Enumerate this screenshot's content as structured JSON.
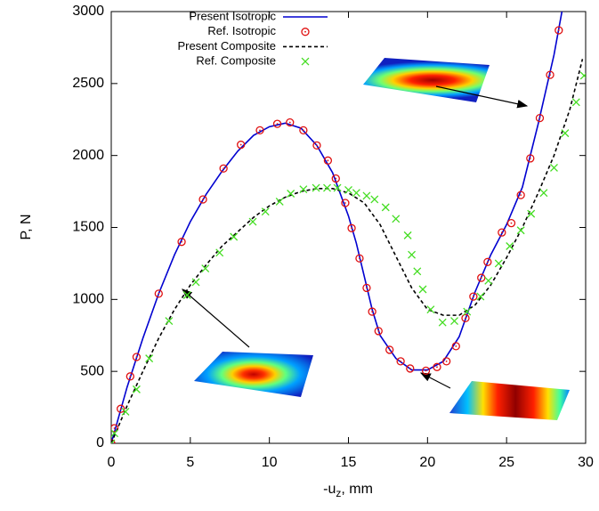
{
  "chart_data": {
    "type": "line",
    "x_label": {
      "main": "-u",
      "sub": "z",
      "rest": ", mm"
    },
    "y_label": "P, N",
    "xlim": [
      0,
      30
    ],
    "xticks": [
      0,
      5,
      10,
      15,
      20,
      25,
      30
    ],
    "ylim": [
      0,
      3000
    ],
    "yticks": [
      0,
      500,
      1000,
      1500,
      2000,
      2500,
      3000
    ],
    "grid": false,
    "legend": "top-left",
    "series": [
      {
        "name": "Present Isotropic",
        "color": "#0000d0",
        "style": "line",
        "x": [
          0,
          1,
          2,
          3,
          4,
          5,
          6,
          7,
          8,
          9,
          10,
          11,
          12,
          13,
          14,
          15,
          15.5,
          16,
          16.5,
          17,
          18,
          19,
          20,
          21,
          22,
          23,
          24,
          25,
          26,
          27,
          28,
          28.5
        ],
        "values": [
          0,
          390,
          730,
          1040,
          1310,
          1540,
          1730,
          1890,
          2030,
          2140,
          2200,
          2225,
          2190,
          2070,
          1880,
          1580,
          1390,
          1160,
          930,
          750,
          590,
          510,
          510,
          570,
          740,
          1050,
          1310,
          1520,
          1780,
          2220,
          2700,
          3000
        ]
      },
      {
        "name": "Ref. Isotropic",
        "color": "#e01010",
        "style": "circle",
        "x": [
          0,
          0.2,
          0.6,
          1.2,
          1.6,
          3.0,
          4.45,
          5.8,
          7.1,
          8.2,
          9.4,
          10.5,
          11.3,
          12.15,
          13.0,
          13.7,
          14.2,
          14.8,
          15.2,
          15.7,
          16.15,
          16.5,
          16.9,
          17.6,
          18.3,
          18.9,
          19.9,
          20.6,
          21.2,
          21.8,
          22.4,
          22.9,
          23.4,
          23.8,
          24.7,
          25.3,
          25.9,
          26.5,
          27.1,
          27.75,
          28.3
        ],
        "values": [
          0,
          105,
          240,
          465,
          600,
          1040,
          1400,
          1695,
          1910,
          2075,
          2175,
          2220,
          2230,
          2175,
          2070,
          1965,
          1840,
          1670,
          1495,
          1285,
          1080,
          915,
          780,
          650,
          570,
          520,
          505,
          530,
          570,
          675,
          870,
          1020,
          1150,
          1260,
          1465,
          1530,
          1725,
          1980,
          2260,
          2560,
          2870
        ]
      },
      {
        "name": "Present Composite",
        "color": "#000000",
        "style": "dashed",
        "x": [
          0,
          1,
          2,
          3,
          4,
          5,
          6,
          7,
          8,
          9,
          10,
          11,
          12,
          13,
          14,
          15,
          16,
          17,
          18,
          19,
          20,
          21,
          22,
          23,
          24,
          25,
          26,
          27,
          28,
          29,
          29.8
        ],
        "values": [
          0,
          260,
          500,
          730,
          930,
          1100,
          1240,
          1370,
          1470,
          1570,
          1650,
          1710,
          1750,
          1770,
          1770,
          1740,
          1670,
          1520,
          1300,
          1080,
          930,
          890,
          890,
          960,
          1100,
          1290,
          1500,
          1740,
          2000,
          2320,
          2670
        ]
      },
      {
        "name": "Ref. Composite",
        "color": "#44dd22",
        "style": "cross",
        "x": [
          0,
          0.2,
          0.9,
          1.6,
          2.4,
          3.65,
          4.8,
          5.35,
          5.95,
          6.85,
          7.75,
          8.95,
          9.75,
          10.65,
          11.35,
          12.15,
          12.95,
          13.65,
          14.3,
          15.0,
          15.5,
          16.15,
          16.65,
          17.35,
          18.0,
          18.75,
          19.0,
          19.35,
          19.7,
          20.2,
          20.95,
          21.7,
          22.5,
          23.35,
          23.85,
          24.5,
          25.2,
          25.9,
          26.55,
          27.35,
          28.0,
          28.7,
          29.4,
          29.9
        ],
        "values": [
          0,
          70,
          220,
          375,
          590,
          850,
          1030,
          1120,
          1215,
          1325,
          1435,
          1540,
          1610,
          1680,
          1735,
          1765,
          1775,
          1775,
          1775,
          1760,
          1740,
          1720,
          1695,
          1640,
          1560,
          1445,
          1310,
          1195,
          1070,
          930,
          840,
          850,
          915,
          1020,
          1130,
          1250,
          1370,
          1480,
          1595,
          1740,
          1915,
          2155,
          2370,
          2555
        ]
      }
    ]
  }
}
